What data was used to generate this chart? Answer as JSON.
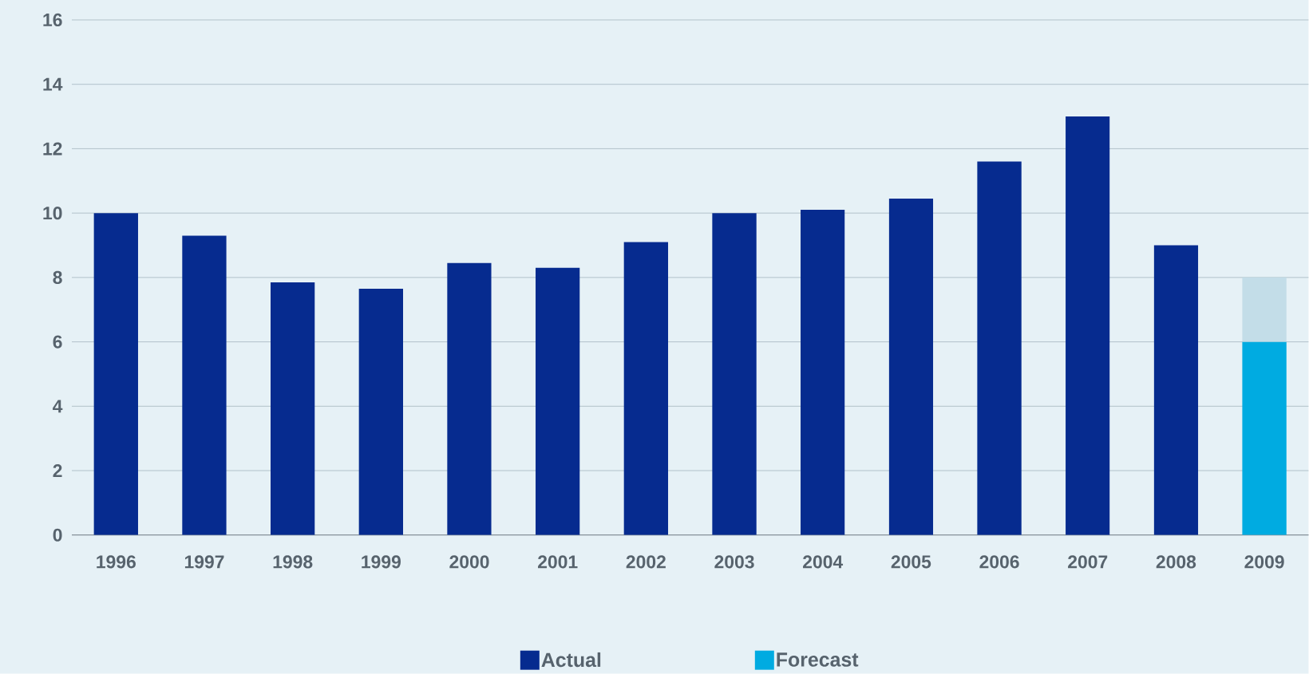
{
  "chart_data": {
    "type": "bar",
    "categories": [
      "1996",
      "1997",
      "1998",
      "1999",
      "2000",
      "2001",
      "2002",
      "2003",
      "2004",
      "2005",
      "2006",
      "2007",
      "2008",
      "2009"
    ],
    "stacked": true,
    "series": [
      {
        "name": "Actual",
        "color": "#062b8f",
        "values": [
          10.0,
          9.3,
          7.85,
          7.65,
          8.45,
          8.3,
          9.1,
          10.0,
          10.1,
          10.45,
          11.6,
          13.0,
          9.0,
          null
        ]
      },
      {
        "name": "Forecast",
        "color": "#00abe1",
        "values": [
          null,
          null,
          null,
          null,
          null,
          null,
          null,
          null,
          null,
          null,
          null,
          null,
          null,
          6
        ]
      },
      {
        "color": "#c3dde8",
        "values": [
          null,
          null,
          null,
          null,
          null,
          null,
          null,
          null,
          null,
          null,
          null,
          null,
          null,
          2
        ]
      }
    ],
    "ylim": [
      0,
      16
    ],
    "yticks": [
      0,
      2,
      4,
      6,
      8,
      10,
      12,
      14,
      16
    ],
    "grid": "y",
    "legend": "bottom"
  }
}
